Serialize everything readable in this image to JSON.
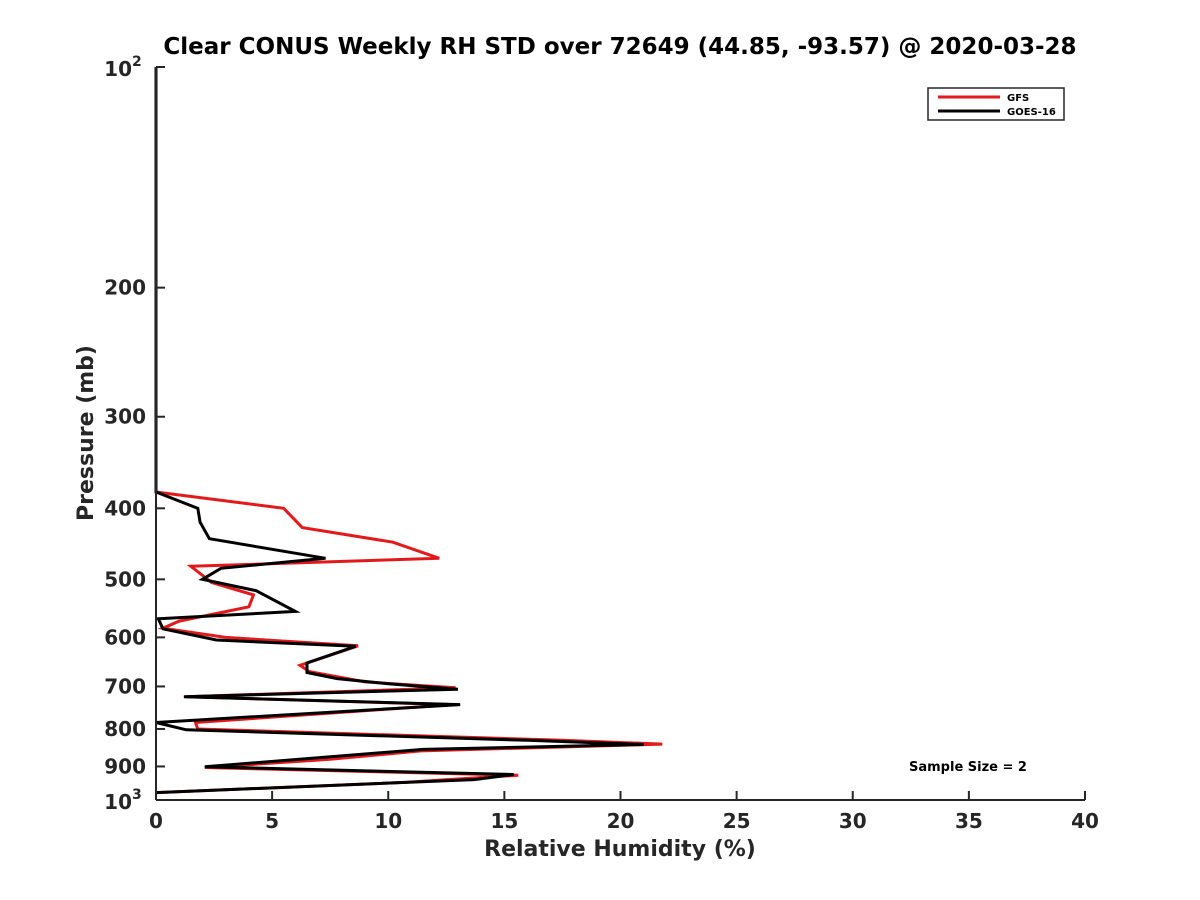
{
  "chart_data": {
    "type": "line",
    "title": "Clear CONUS Weekly RH STD over 72649 (44.85, -93.57) @ 2020-03-28",
    "xlabel": "Relative Humidity (%)",
    "ylabel": "Pressure (mb)",
    "xlim": [
      0,
      40
    ],
    "ylim": [
      100,
      1000
    ],
    "y_scale": "log",
    "y_reversed": true,
    "x_ticks": [
      "0",
      "5",
      "10",
      "15",
      "20",
      "25",
      "30",
      "35",
      "40"
    ],
    "y_ticks": [
      {
        "value": 100,
        "base": "10",
        "exp": "2"
      },
      {
        "value": 200,
        "label": "200"
      },
      {
        "value": 300,
        "label": "300"
      },
      {
        "value": 400,
        "label": "400"
      },
      {
        "value": 500,
        "label": "500"
      },
      {
        "value": 600,
        "label": "600"
      },
      {
        "value": 700,
        "label": "700"
      },
      {
        "value": 800,
        "label": "800"
      },
      {
        "value": 900,
        "label": "900"
      },
      {
        "value": 1000,
        "base": "10",
        "exp": "3"
      }
    ],
    "legend_position": "top-right",
    "grid": false,
    "annotation": "Sample Size = 2",
    "series": [
      {
        "name": "GFS",
        "color": "#e31a1c",
        "points": [
          [
            0,
            100
          ],
          [
            0,
            380
          ],
          [
            5.5,
            400
          ],
          [
            6.3,
            425
          ],
          [
            10.2,
            445
          ],
          [
            12.2,
            468
          ],
          [
            1.5,
            480
          ],
          [
            2.4,
            505
          ],
          [
            4.2,
            525
          ],
          [
            4.0,
            545
          ],
          [
            1.0,
            570
          ],
          [
            0.3,
            583
          ],
          [
            3.0,
            600
          ],
          [
            8.7,
            616
          ],
          [
            6.2,
            655
          ],
          [
            6.6,
            668
          ],
          [
            9.0,
            690
          ],
          [
            12.9,
            703
          ],
          [
            1.3,
            723
          ],
          [
            12.8,
            741
          ],
          [
            7.5,
            761
          ],
          [
            1.7,
            784
          ],
          [
            1.8,
            800
          ],
          [
            17.5,
            829
          ],
          [
            21.8,
            839
          ],
          [
            11.4,
            857
          ],
          [
            7.5,
            880
          ],
          [
            2.1,
            903
          ],
          [
            15.6,
            925
          ],
          [
            10.8,
            946
          ],
          [
            0,
            977
          ]
        ]
      },
      {
        "name": "GOES-16",
        "color": "#000000",
        "points": [
          [
            0,
            100
          ],
          [
            0,
            380
          ],
          [
            1.8,
            400
          ],
          [
            1.9,
            418
          ],
          [
            2.3,
            440
          ],
          [
            7.3,
            468
          ],
          [
            2.8,
            483
          ],
          [
            2.0,
            500
          ],
          [
            4.3,
            518
          ],
          [
            6.0,
            553
          ],
          [
            0.1,
            566
          ],
          [
            0.3,
            584
          ],
          [
            2.6,
            605
          ],
          [
            8.6,
            617
          ],
          [
            6.5,
            650
          ],
          [
            6.5,
            670
          ],
          [
            7.8,
            683
          ],
          [
            10.0,
            694
          ],
          [
            13.0,
            706
          ],
          [
            1.2,
            723
          ],
          [
            13.1,
            741
          ],
          [
            0,
            784
          ],
          [
            1.3,
            802
          ],
          [
            16.0,
            829
          ],
          [
            21.0,
            840
          ],
          [
            11.5,
            853
          ],
          [
            2.1,
            901
          ],
          [
            15.4,
            923
          ],
          [
            13.7,
            938
          ],
          [
            0,
            977
          ]
        ]
      }
    ]
  }
}
